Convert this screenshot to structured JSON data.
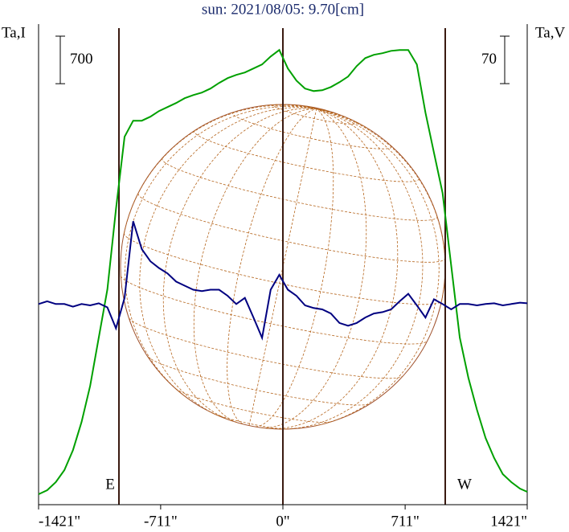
{
  "chart_data": {
    "type": "line",
    "title": "sun: 2021/08/05: 9.70[cm]",
    "left_axis_label": "Ta,I",
    "right_axis_label": "Ta,V",
    "annotations": [
      "E",
      "W"
    ],
    "x": [
      -1421,
      -1371,
      -1321,
      -1271,
      -1221,
      -1171,
      -1121,
      -1071,
      -1021,
      -971,
      -921,
      -871,
      -821,
      -771,
      -721,
      -671,
      -621,
      -571,
      -521,
      -471,
      -421,
      -371,
      -321,
      -271,
      -221,
      -171,
      -121,
      -71,
      -21,
      29,
      79,
      129,
      179,
      229,
      279,
      329,
      379,
      429,
      479,
      529,
      579,
      629,
      679,
      729,
      779,
      829,
      879,
      929,
      979,
      1029,
      1079,
      1129,
      1179,
      1229,
      1279,
      1329,
      1379,
      1421
    ],
    "series": [
      {
        "color": "#00a000",
        "axis": "y",
        "values": [
          154,
          213,
          331,
          509,
          804,
          1218,
          1751,
          2461,
          3170,
          4353,
          5418,
          5655,
          5655,
          5714,
          5797,
          5856,
          5915,
          5986,
          6033,
          6069,
          6128,
          6211,
          6282,
          6329,
          6365,
          6424,
          6483,
          6601,
          6696,
          6424,
          6246,
          6128,
          6092,
          6104,
          6151,
          6222,
          6305,
          6459,
          6577,
          6625,
          6649,
          6684,
          6696,
          6696,
          6483,
          5773,
          5181,
          4590,
          3525,
          2461,
          1869,
          1396,
          982,
          686,
          450,
          331,
          237,
          189
        ]
      },
      {
        "color": "#000080",
        "axis": "y2",
        "values": [
          0,
          4,
          0,
          0,
          -4,
          0,
          -2,
          1,
          -5,
          -36,
          9,
          122,
          81,
          63,
          53,
          45,
          33,
          27,
          21,
          19,
          21,
          21,
          12,
          0,
          9,
          -20,
          -50,
          21,
          43,
          21,
          12,
          -2,
          -6,
          -8,
          -14,
          -28,
          -32,
          -28,
          -20,
          -14,
          -12,
          -8,
          4,
          15,
          -2,
          -20,
          7,
          0,
          -8,
          0,
          0,
          -2,
          0,
          1,
          -2,
          0,
          2,
          1
        ]
      }
    ],
    "scale_bars": [
      {
        "value": 700,
        "axis": "y"
      },
      {
        "value": 70,
        "axis": "y2"
      }
    ],
    "xlim": [
      -1421,
      1421
    ],
    "ylim": [
      0,
      6900
    ],
    "y2lim": [
      -296,
      395
    ],
    "xticks": [
      {
        "value": -1421,
        "label": "-1421\""
      },
      {
        "value": -711,
        "label": "-711\""
      },
      {
        "value": 0,
        "label": "0\""
      },
      {
        "value": 711,
        "label": "711\""
      },
      {
        "value": 1421,
        "label": "1421\""
      }
    ]
  }
}
